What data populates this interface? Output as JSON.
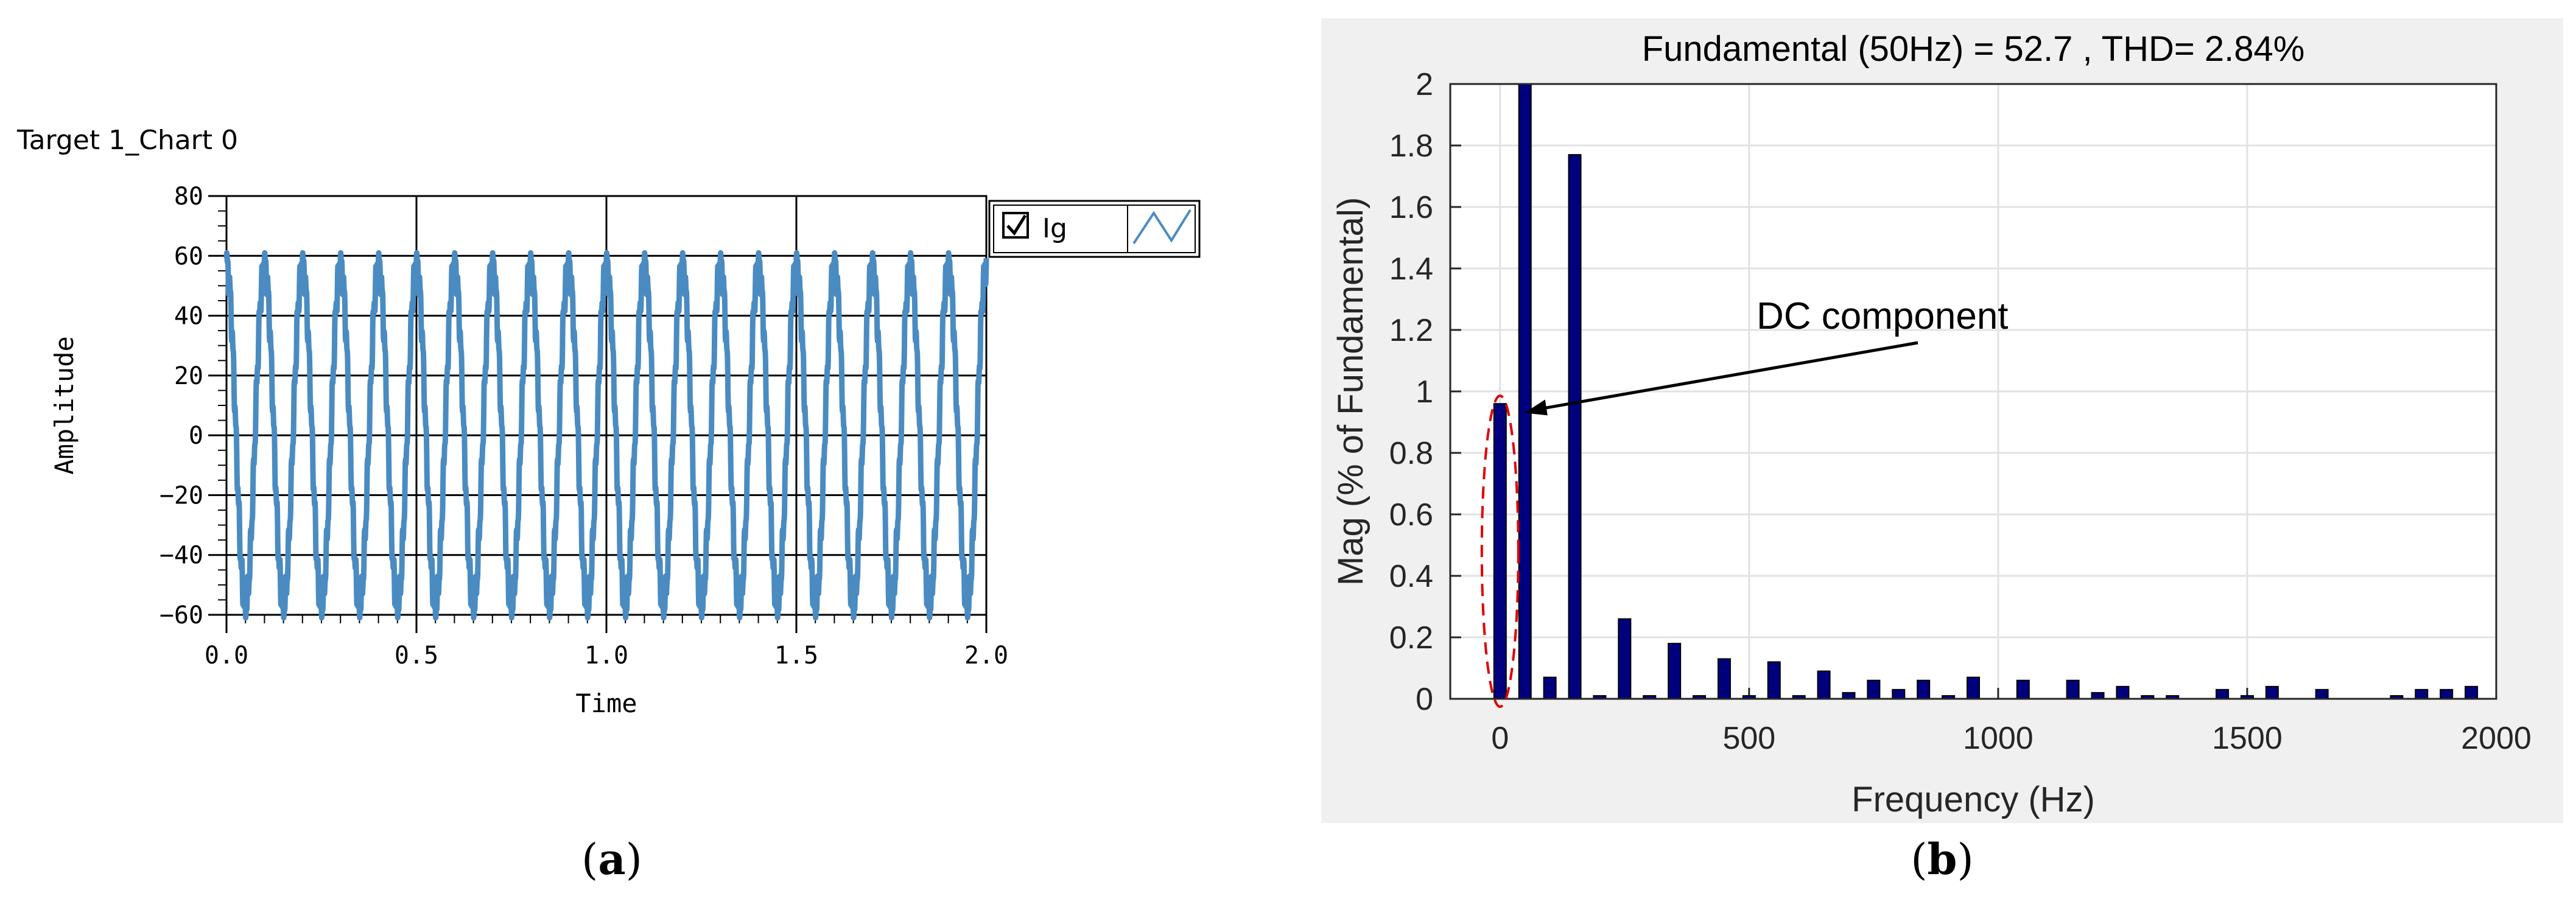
{
  "figure": {
    "panel_a_letter": "a",
    "panel_b_letter": "b"
  },
  "chart_data": [
    {
      "type": "line",
      "title": "Target 1_Chart 0",
      "xlabel": "Time",
      "ylabel": "Amplitude",
      "xlim": [
        0.0,
        2.0
      ],
      "ylim": [
        -60,
        80
      ],
      "x_ticks": [
        "0.0",
        "0.5",
        "1.0",
        "1.5",
        "2.0"
      ],
      "y_ticks": [
        "80",
        "60",
        "40",
        "20",
        "0",
        "−20",
        "−40",
        "−60"
      ],
      "grid": true,
      "legend": {
        "position": "top-right",
        "checked": true,
        "label": "Ig",
        "icon": "wave-icon"
      },
      "line_color": "#4a8bc2",
      "series": [
        {
          "name": "Ig",
          "signal": "sine",
          "frequency_hz": 10,
          "amplitude": 57,
          "noise": "ripple"
        }
      ]
    },
    {
      "type": "bar",
      "title": "Fundamental (50Hz) = 52.7 , THD= 2.84%",
      "xlabel": "Frequency (Hz)",
      "ylabel": "Mag (% of Fundamental)",
      "xlim": [
        -100,
        2000
      ],
      "ylim": [
        0,
        2
      ],
      "x_ticks": [
        "0",
        "500",
        "1000",
        "1500",
        "2000"
      ],
      "y_ticks": [
        "0",
        "0.2",
        "0.4",
        "0.6",
        "0.8",
        "1",
        "1.2",
        "1.4",
        "1.6",
        "1.8",
        "2"
      ],
      "grid": true,
      "bar_color": "#00007f",
      "frequencies": [
        0,
        50,
        100,
        150,
        200,
        250,
        300,
        350,
        400,
        450,
        500,
        550,
        600,
        650,
        700,
        750,
        800,
        850,
        900,
        950,
        1000,
        1050,
        1100,
        1150,
        1200,
        1250,
        1300,
        1350,
        1400,
        1450,
        1500,
        1550,
        1600,
        1650,
        1700,
        1750,
        1800,
        1850,
        1900,
        1950
      ],
      "values": [
        0.96,
        2.0,
        0.07,
        1.77,
        0.01,
        0.26,
        0.01,
        0.18,
        0.01,
        0.13,
        0.01,
        0.12,
        0.01,
        0.09,
        0.02,
        0.06,
        0.03,
        0.06,
        0.01,
        0.07,
        0.0,
        0.06,
        0.0,
        0.06,
        0.02,
        0.04,
        0.01,
        0.01,
        0.0,
        0.03,
        0.01,
        0.04,
        0.0,
        0.03,
        0.0,
        0.0,
        0.01,
        0.03,
        0.03,
        0.04
      ],
      "annotation": {
        "text": "DC component",
        "target_frequency": 0,
        "marker": "dashed red ellipse"
      }
    }
  ]
}
